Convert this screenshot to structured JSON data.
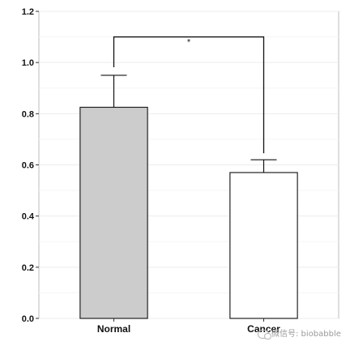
{
  "chart_data": {
    "type": "bar",
    "categories": [
      "Normal",
      "Cancer"
    ],
    "values": [
      0.825,
      0.57
    ],
    "errors": [
      0.125,
      0.05
    ],
    "bar_fills": [
      "#cccccc",
      "#ffffff"
    ],
    "ylim": [
      0,
      1.2
    ],
    "yticks": [
      0.0,
      0.2,
      0.4,
      0.6,
      0.8,
      1.0,
      1.2
    ],
    "ytick_labels": [
      "0.0",
      "0.2",
      "0.4",
      "0.6",
      "0.8",
      "1.0",
      "1.2"
    ],
    "grid": true,
    "significance": {
      "label": "*",
      "y": 1.1,
      "between": [
        "Normal",
        "Cancer"
      ]
    },
    "xlabel": "",
    "ylabel": ""
  },
  "watermark": {
    "text": "微信号: biobabble",
    "icon": "chat-bubbles-icon"
  }
}
